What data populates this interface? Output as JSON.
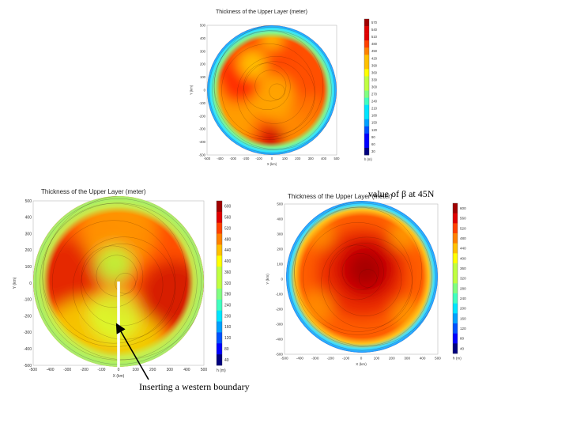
{
  "annotations": {
    "beta_note": "value of β at 45N",
    "boundary_note": "Inserting a western boundary"
  },
  "chart_data": [
    {
      "type": "heatmap",
      "title": "Thickness of the Upper Layer (meter)",
      "xlabel": "X (km)",
      "ylabel": "Y (km)",
      "colorbar_label": "h (m)",
      "xlim": [
        -500,
        500
      ],
      "ylim": [
        -500,
        500
      ],
      "x_ticks": [
        -500,
        -400,
        -300,
        -200,
        -100,
        0,
        100,
        200,
        300,
        400,
        500
      ],
      "y_ticks": [
        500,
        400,
        300,
        200,
        100,
        0,
        -100,
        -200,
        -300,
        -400,
        -500
      ],
      "colorbar_ticks": [
        570,
        540,
        510,
        480,
        450,
        420,
        390,
        360,
        330,
        300,
        270,
        240,
        210,
        180,
        150,
        120,
        90,
        60,
        30
      ],
      "domain_radius": 500,
      "pattern": "patchy red-orange interior, blue/cyan near boundary"
    },
    {
      "type": "heatmap",
      "title": "Thickness of the Upper Layer (meter)",
      "xlabel": "X (km)",
      "ylabel": "Y (km)",
      "colorbar_label": "h (m)",
      "xlim": [
        -500,
        500
      ],
      "ylim": [
        -500,
        500
      ],
      "x_ticks": [
        -500,
        -400,
        -300,
        -200,
        -100,
        0,
        100,
        200,
        300,
        400,
        500
      ],
      "y_ticks": [
        500,
        400,
        300,
        200,
        100,
        0,
        -100,
        -200,
        -300,
        -400,
        -500
      ],
      "colorbar_ticks": [
        600,
        560,
        520,
        480,
        440,
        400,
        360,
        320,
        280,
        240,
        200,
        160,
        120,
        80,
        40
      ],
      "domain_radius": 500,
      "barrier": {
        "x": 0,
        "y_from": 0,
        "y_to": -500
      },
      "pattern": "two red lobes either side of a western boundary, green/yellow near boundary"
    },
    {
      "type": "heatmap",
      "title": "Thickness of the Upper Layer (meter)",
      "xlabel": "X (km)",
      "ylabel": "Y (km)",
      "colorbar_label": "h (m)",
      "xlim": [
        -500,
        500
      ],
      "ylim": [
        -500,
        500
      ],
      "x_ticks": [
        -500,
        -400,
        -300,
        -200,
        -100,
        0,
        100,
        200,
        300,
        400,
        500
      ],
      "y_ticks": [
        500,
        400,
        300,
        200,
        100,
        0,
        -100,
        -200,
        -300,
        -400,
        -500
      ],
      "colorbar_ticks": [
        600,
        560,
        520,
        480,
        440,
        400,
        360,
        320,
        280,
        240,
        200,
        160,
        120,
        80,
        40
      ],
      "domain_radius": 500,
      "pattern": "single dark red core centred, orange ring, cyan boundary"
    }
  ]
}
